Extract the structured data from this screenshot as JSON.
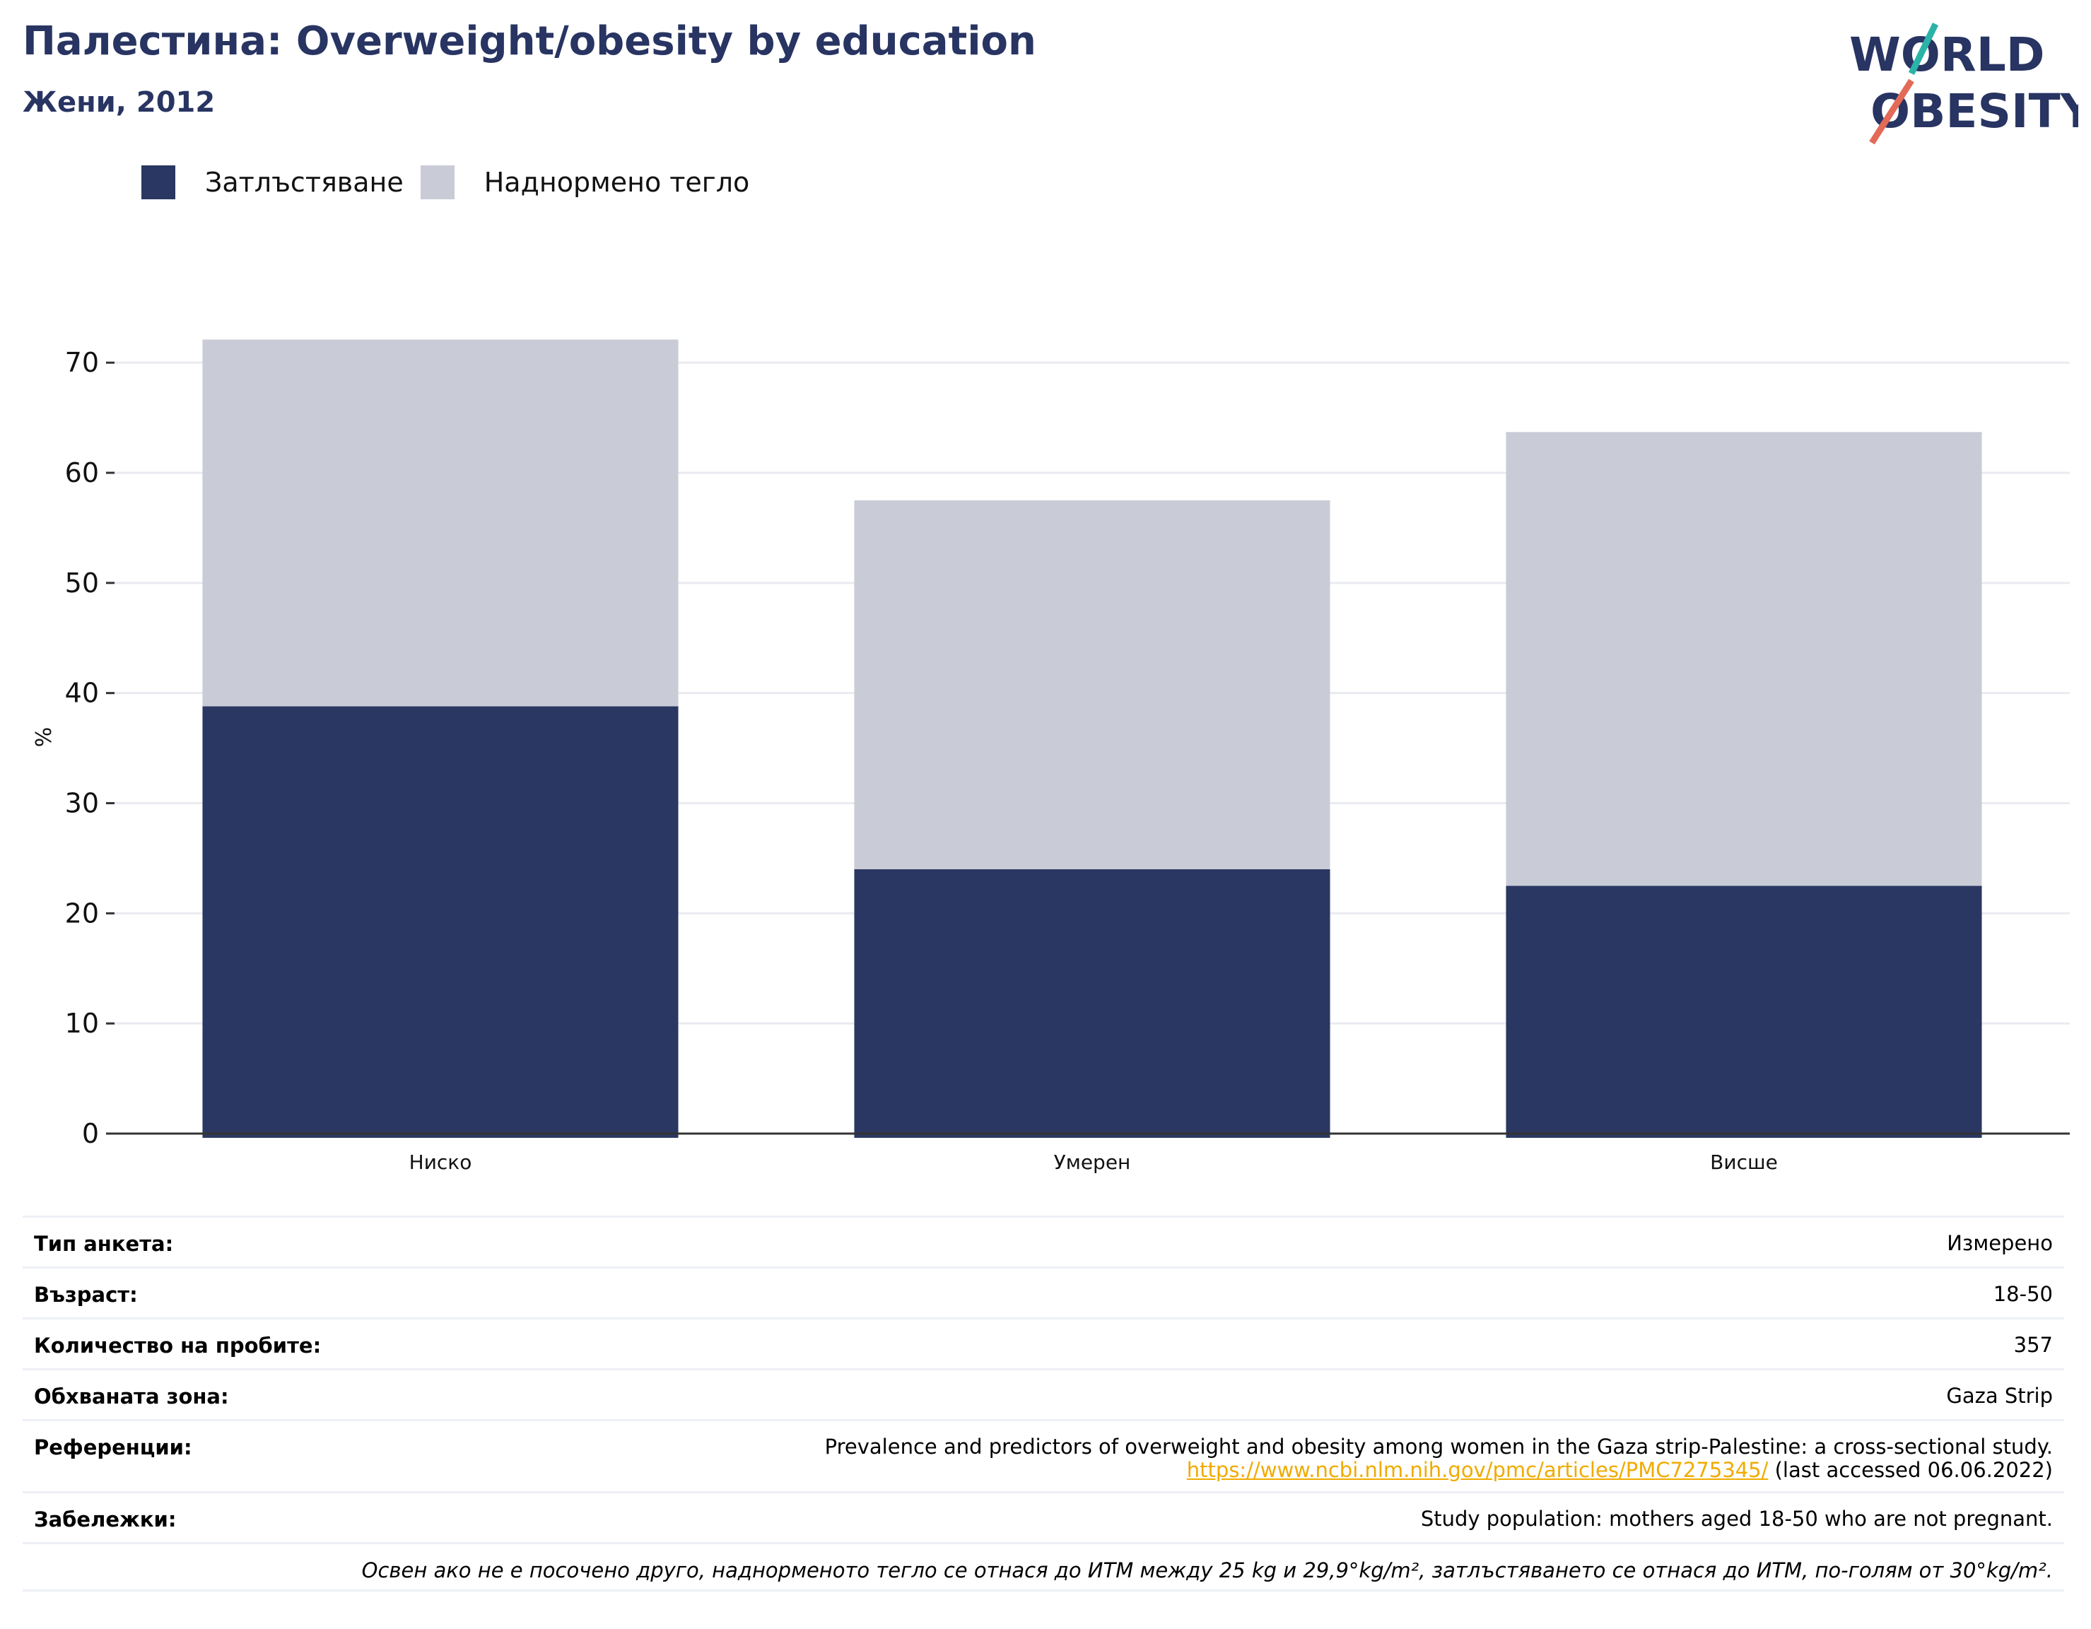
{
  "header": {
    "title": "Палестина: Overweight/obesity by education",
    "subtitle": "Жени, 2012"
  },
  "logo": {
    "line1": "WORLD",
    "line2": "OBESITY"
  },
  "legend": [
    {
      "label": "Затлъстяване",
      "color": "#2a3762"
    },
    {
      "label": "Наднормено тегло",
      "color": "#c9cbd7"
    }
  ],
  "chart_data": {
    "type": "bar",
    "stacked": true,
    "categories": [
      "Ниско",
      "Умерен",
      "Висше"
    ],
    "series": [
      {
        "name": "Затлъстяване",
        "values": [
          38.8,
          24.0,
          22.5
        ],
        "color": "#2a3762"
      },
      {
        "name": "Наднормено тегло",
        "values": [
          33.3,
          33.5,
          41.2
        ],
        "color": "#c9cbd7"
      }
    ],
    "ylabel": "%",
    "ylim": [
      0,
      72
    ],
    "yticks": [
      0,
      10,
      20,
      30,
      40,
      50,
      60,
      70
    ],
    "grid": true,
    "legend_position": "top-left"
  },
  "meta": [
    {
      "label": "Тип анкета:",
      "value": "Измерено"
    },
    {
      "label": "Възраст:",
      "value": "18-50"
    },
    {
      "label": "Количество на пробите:",
      "value": "357"
    },
    {
      "label": "Обхваната зона:",
      "value": "Gaza Strip"
    }
  ],
  "references": {
    "label": "Референции:",
    "text": "Prevalence and predictors of overweight and obesity among women in the Gaza strip-Palestine: a cross-sectional study.",
    "link": "https://www.ncbi.nlm.nih.gov/pmc/articles/PMC7275345/",
    "accessed": "(last accessed 06.06.2022)"
  },
  "notes": {
    "label": "Забележки:",
    "value": "Study population: mothers aged 18-50 who are not pregnant."
  },
  "footnote": "Освен ако не е посочено друго, наднорменото тегло се отнася до ИТМ между 25 kg и 29,9°kg/m², затлъстяването се отнася до ИТМ, по-голям от 30°kg/m²."
}
